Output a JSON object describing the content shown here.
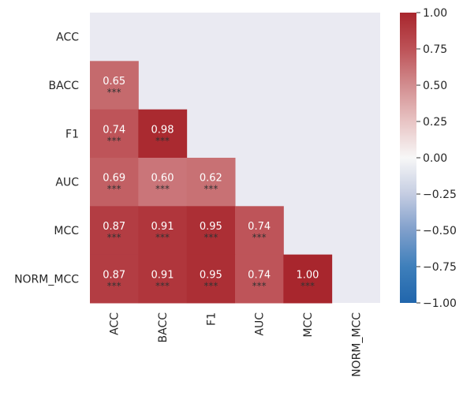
{
  "chart_data": {
    "type": "heatmap",
    "title": "",
    "xlabel": "",
    "ylabel": "",
    "variables": [
      "ACC",
      "BACC",
      "F1",
      "AUC",
      "MCC",
      "NORM_MCC"
    ],
    "mask": "upper-triangle-including-diagonal",
    "cells": [
      {
        "row": "BACC",
        "col": "ACC",
        "value": 0.65,
        "value_label": "0.65",
        "significance": "***"
      },
      {
        "row": "F1",
        "col": "ACC",
        "value": 0.74,
        "value_label": "0.74",
        "significance": "***"
      },
      {
        "row": "F1",
        "col": "BACC",
        "value": 0.98,
        "value_label": "0.98",
        "significance": "***"
      },
      {
        "row": "AUC",
        "col": "ACC",
        "value": 0.69,
        "value_label": "0.69",
        "significance": "***"
      },
      {
        "row": "AUC",
        "col": "BACC",
        "value": 0.6,
        "value_label": "0.60",
        "significance": "***"
      },
      {
        "row": "AUC",
        "col": "F1",
        "value": 0.62,
        "value_label": "0.62",
        "significance": "***"
      },
      {
        "row": "MCC",
        "col": "ACC",
        "value": 0.87,
        "value_label": "0.87",
        "significance": "***"
      },
      {
        "row": "MCC",
        "col": "BACC",
        "value": 0.91,
        "value_label": "0.91",
        "significance": "***"
      },
      {
        "row": "MCC",
        "col": "F1",
        "value": 0.95,
        "value_label": "0.95",
        "significance": "***"
      },
      {
        "row": "MCC",
        "col": "AUC",
        "value": 0.74,
        "value_label": "0.74",
        "significance": "***"
      },
      {
        "row": "NORM_MCC",
        "col": "ACC",
        "value": 0.87,
        "value_label": "0.87",
        "significance": "***"
      },
      {
        "row": "NORM_MCC",
        "col": "BACC",
        "value": 0.91,
        "value_label": "0.91",
        "significance": "***"
      },
      {
        "row": "NORM_MCC",
        "col": "F1",
        "value": 0.95,
        "value_label": "0.95",
        "significance": "***"
      },
      {
        "row": "NORM_MCC",
        "col": "AUC",
        "value": 0.74,
        "value_label": "0.74",
        "significance": "***"
      },
      {
        "row": "NORM_MCC",
        "col": "MCC",
        "value": 1.0,
        "value_label": "1.00",
        "significance": "***"
      }
    ],
    "colorbar": {
      "range": [
        -1.0,
        1.0
      ],
      "ticks": [
        1.0,
        0.75,
        0.5,
        0.25,
        0.0,
        -0.25,
        -0.5,
        -0.75,
        -1.0
      ],
      "tick_labels": [
        "1.00",
        "0.75",
        "0.50",
        "0.25",
        "0.00",
        "−0.25",
        "−0.50",
        "−0.75",
        "−1.00"
      ],
      "colormap": "diverging blue-white-red"
    },
    "grid": false,
    "legend": "colorbar-right"
  },
  "colors": {
    "plot_background": "#eaeaf2",
    "low": "#2166ac",
    "mid": "#f7f7f7",
    "high": "#b2182b",
    "cell_text": "#ffffff",
    "star_text": "#333333",
    "axis_text": "#262626"
  }
}
